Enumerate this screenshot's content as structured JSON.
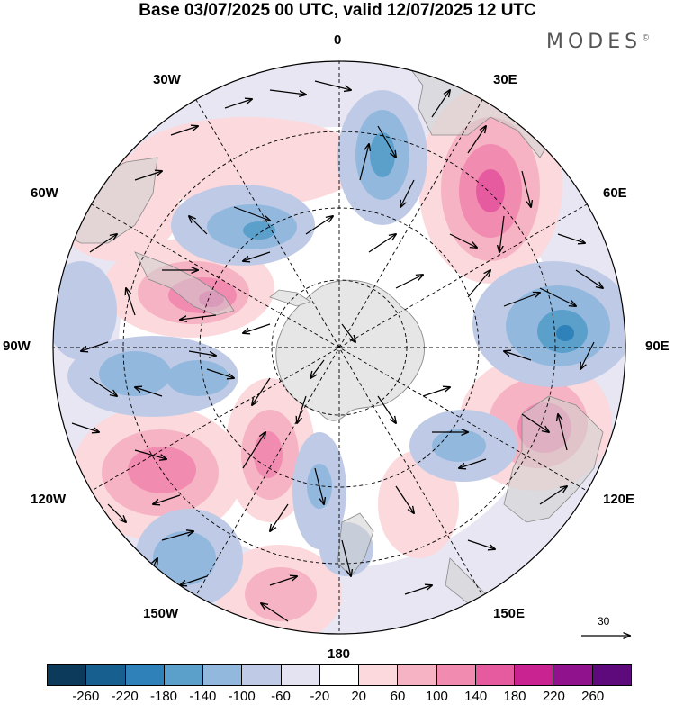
{
  "title": "Base 03/07/2025 00 UTC, valid 12/07/2025 12 UTC",
  "brand": "MODES",
  "brand_mark": "©",
  "longitude_labels": {
    "n0": "0",
    "e30": "30E",
    "e60": "60E",
    "e90": "90E",
    "e120": "120E",
    "e150": "150E",
    "s180": "180",
    "w150": "150W",
    "w120": "120W",
    "w90": "90W",
    "w60": "60W",
    "w30": "30W"
  },
  "reference_vector": "30",
  "colorbar": {
    "colors": [
      "#0c3a5b",
      "#165f8e",
      "#2f82b9",
      "#5b9fcb",
      "#93b8de",
      "#bfcbe6",
      "#e3e3f1",
      "#ffffff",
      "#fbd9dc",
      "#f6b3c4",
      "#f18bb0",
      "#e65b9f",
      "#c82390",
      "#90128d",
      "#5e0a7c"
    ],
    "ticks": [
      "-260",
      "-220",
      "-180",
      "-140",
      "-100",
      "-60",
      "-20",
      "20",
      "60",
      "100",
      "140",
      "180",
      "220",
      "260"
    ]
  },
  "icons": {
    "antarctica": "antarctica-landmass",
    "wind": "wind-vector-arrow"
  }
}
